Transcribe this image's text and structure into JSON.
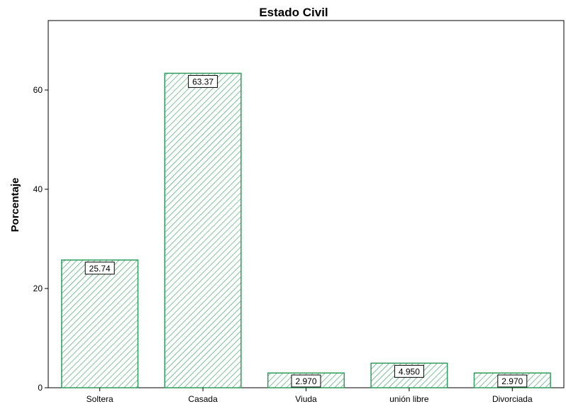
{
  "chart_data": {
    "type": "bar",
    "title": "Estado Civil",
    "xlabel": "",
    "ylabel": "Porcentaje",
    "categories": [
      "Soltera",
      "Casada",
      "Viuda",
      "unión libre",
      "Divorciada"
    ],
    "values": [
      25.74,
      63.37,
      2.97,
      4.95,
      2.97
    ],
    "data_labels": [
      "25.74",
      "63.37",
      "2.970",
      "4.950",
      "2.970"
    ],
    "ylim": [
      0,
      74
    ],
    "yticks": [
      0,
      20,
      40,
      60
    ],
    "ytick_labels": [
      "0",
      "20",
      "40",
      "60"
    ],
    "grid": false,
    "legend": "none",
    "bar_color": "#2e9c5c",
    "bar_fill": "diagonal-hatch"
  }
}
